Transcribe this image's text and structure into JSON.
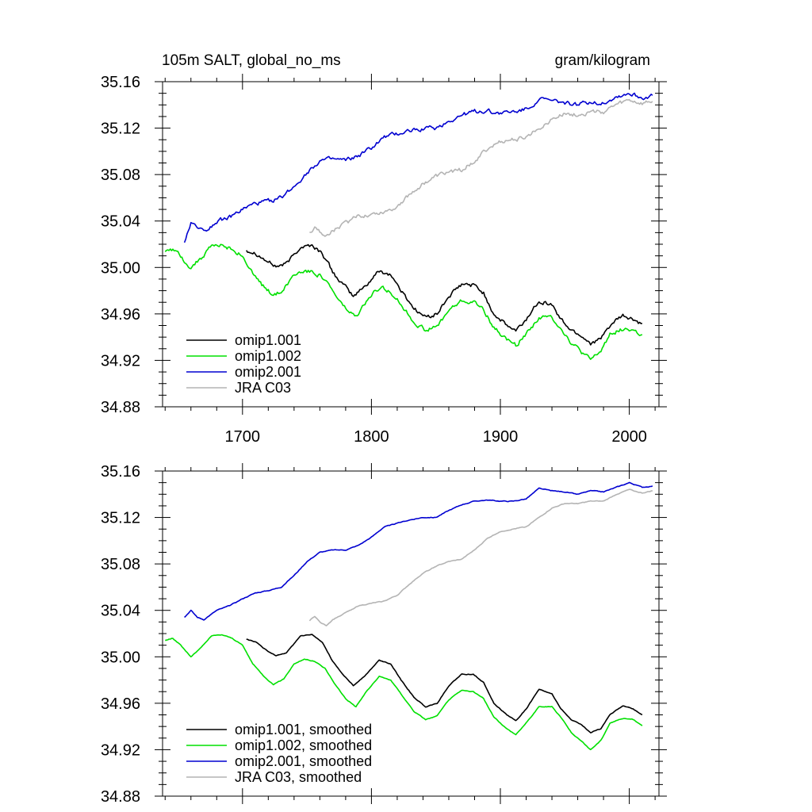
{
  "colors": {
    "omip1_001": "#000000",
    "omip1_002": "#00e000",
    "omip2_001": "#0000d0",
    "jra_c03": "#b4b4b4"
  },
  "chart_data": [
    {
      "type": "line",
      "title": "105m SALT, global_no_ms",
      "units": "gram/kilogram",
      "xlim": [
        1638,
        2023
      ],
      "ylim": [
        34.88,
        35.16
      ],
      "xticks": [
        "1700",
        "1800",
        "1900",
        "2000"
      ],
      "yticks": [
        "35.16",
        "35.12",
        "35.08",
        "35.04",
        "35.00",
        "34.96",
        "34.92",
        "34.88"
      ],
      "legend": "bottom-left",
      "series": [
        {
          "name": "omip1.001",
          "key": "omip1_001",
          "x": [
            1703,
            1710,
            1718,
            1726,
            1734,
            1745,
            1754,
            1762,
            1770,
            1778,
            1786,
            1796,
            1806,
            1815,
            1823,
            1833,
            1842,
            1851,
            1860,
            1870,
            1879,
            1887,
            1895,
            1905,
            1912,
            1920,
            1930,
            1940,
            1947,
            1955,
            1962,
            1970,
            1978,
            1985,
            1995,
            2003,
            2010
          ],
          "values": [
            35.015,
            35.013,
            35.006,
            35.001,
            35.003,
            35.018,
            35.019,
            35.012,
            34.996,
            34.985,
            34.975,
            34.985,
            34.997,
            34.994,
            34.98,
            34.965,
            34.957,
            34.96,
            34.975,
            34.985,
            34.985,
            34.978,
            34.96,
            34.95,
            34.945,
            34.955,
            34.972,
            34.968,
            34.955,
            34.946,
            34.942,
            34.935,
            34.938,
            34.95,
            34.958,
            34.955,
            34.95
          ],
          "noise": 0.0035
        },
        {
          "name": "omip1.002",
          "key": "omip1_002",
          "x": [
            1640,
            1646,
            1652,
            1660,
            1668,
            1676,
            1684,
            1692,
            1700,
            1708,
            1716,
            1724,
            1732,
            1740,
            1748,
            1756,
            1764,
            1772,
            1780,
            1788,
            1796,
            1806,
            1815,
            1823,
            1833,
            1842,
            1851,
            1860,
            1870,
            1879,
            1887,
            1895,
            1905,
            1912,
            1920,
            1930,
            1940,
            1947,
            1955,
            1962,
            1970,
            1978,
            1985,
            1995,
            2003,
            2010
          ],
          "values": [
            35.014,
            35.016,
            35.01,
            35.0,
            35.008,
            35.018,
            35.019,
            35.016,
            35.01,
            34.994,
            34.984,
            34.976,
            34.981,
            34.994,
            34.998,
            34.996,
            34.99,
            34.976,
            34.964,
            34.957,
            34.97,
            34.983,
            34.98,
            34.968,
            34.953,
            34.946,
            34.949,
            34.963,
            34.971,
            34.97,
            34.964,
            34.948,
            34.938,
            34.933,
            34.943,
            34.957,
            34.957,
            34.948,
            34.935,
            34.928,
            34.92,
            34.928,
            34.943,
            34.947,
            34.946,
            34.941
          ],
          "noise": 0.0035
        },
        {
          "name": "omip2.001",
          "key": "omip2_001",
          "x": [
            1655,
            1660,
            1665,
            1670,
            1680,
            1690,
            1700,
            1710,
            1720,
            1730,
            1740,
            1750,
            1760,
            1770,
            1780,
            1790,
            1800,
            1810,
            1820,
            1830,
            1840,
            1850,
            1860,
            1870,
            1880,
            1890,
            1900,
            1910,
            1920,
            1930,
            1940,
            1950,
            1960,
            1970,
            1980,
            1990,
            2000,
            2010,
            2018
          ],
          "values": [
            35.022,
            35.038,
            35.036,
            35.031,
            35.04,
            35.043,
            35.05,
            35.055,
            35.057,
            35.06,
            35.07,
            35.082,
            35.092,
            35.093,
            35.092,
            35.096,
            35.103,
            35.112,
            35.115,
            35.118,
            35.12,
            35.12,
            35.126,
            35.131,
            35.134,
            35.135,
            35.133,
            35.134,
            35.136,
            35.145,
            35.143,
            35.142,
            35.14,
            35.143,
            35.142,
            35.147,
            35.15,
            35.146,
            35.148
          ],
          "noise": 0.0035
        },
        {
          "name": "JRA C03",
          "key": "jra_c03",
          "x": [
            1752,
            1756,
            1760,
            1765,
            1770,
            1780,
            1790,
            1800,
            1810,
            1820,
            1830,
            1840,
            1850,
            1860,
            1870,
            1880,
            1890,
            1900,
            1910,
            1920,
            1930,
            1940,
            1950,
            1960,
            1970,
            1980,
            1990,
            2000,
            2010,
            2018
          ],
          "values": [
            35.031,
            35.035,
            35.03,
            35.027,
            35.032,
            35.038,
            35.044,
            35.046,
            35.048,
            35.053,
            35.063,
            35.072,
            35.078,
            35.082,
            35.084,
            35.092,
            35.102,
            35.108,
            35.11,
            35.112,
            35.12,
            35.128,
            35.132,
            35.132,
            35.134,
            35.134,
            35.14,
            35.144,
            35.141,
            35.143
          ],
          "noise": 0.0035
        }
      ]
    },
    {
      "type": "line",
      "title": "",
      "xlim": [
        1638,
        2023
      ],
      "ylim": [
        34.88,
        35.16
      ],
      "yticks": [
        "35.16",
        "35.12",
        "35.08",
        "35.04",
        "35.00",
        "34.96",
        "34.92",
        "34.88"
      ],
      "legend": "bottom-left",
      "series": [
        {
          "name": "omip1.001, smoothed",
          "key": "omip1_001",
          "x": [
            1703,
            1710,
            1718,
            1726,
            1734,
            1745,
            1754,
            1762,
            1770,
            1778,
            1786,
            1796,
            1806,
            1815,
            1823,
            1833,
            1842,
            1851,
            1860,
            1870,
            1879,
            1887,
            1895,
            1905,
            1912,
            1920,
            1930,
            1940,
            1947,
            1955,
            1962,
            1970,
            1978,
            1985,
            1995,
            2003,
            2010
          ],
          "values": [
            35.015,
            35.013,
            35.006,
            35.001,
            35.003,
            35.018,
            35.019,
            35.012,
            34.996,
            34.985,
            34.975,
            34.985,
            34.997,
            34.994,
            34.98,
            34.965,
            34.957,
            34.96,
            34.975,
            34.985,
            34.985,
            34.978,
            34.96,
            34.95,
            34.945,
            34.955,
            34.972,
            34.968,
            34.955,
            34.946,
            34.942,
            34.935,
            34.938,
            34.95,
            34.958,
            34.955,
            34.95
          ],
          "noise": 0.0006
        },
        {
          "name": "omip1.002, smoothed",
          "key": "omip1_002",
          "x": [
            1640,
            1646,
            1652,
            1660,
            1668,
            1676,
            1684,
            1692,
            1700,
            1708,
            1716,
            1724,
            1732,
            1740,
            1748,
            1756,
            1764,
            1772,
            1780,
            1788,
            1796,
            1806,
            1815,
            1823,
            1833,
            1842,
            1851,
            1860,
            1870,
            1879,
            1887,
            1895,
            1905,
            1912,
            1920,
            1930,
            1940,
            1947,
            1955,
            1962,
            1970,
            1978,
            1985,
            1995,
            2003,
            2010
          ],
          "values": [
            35.014,
            35.016,
            35.01,
            35.0,
            35.008,
            35.018,
            35.019,
            35.016,
            35.01,
            34.994,
            34.984,
            34.976,
            34.981,
            34.994,
            34.998,
            34.996,
            34.99,
            34.976,
            34.964,
            34.957,
            34.97,
            34.983,
            34.98,
            34.968,
            34.953,
            34.946,
            34.949,
            34.963,
            34.971,
            34.97,
            34.964,
            34.948,
            34.938,
            34.933,
            34.943,
            34.957,
            34.957,
            34.948,
            34.935,
            34.928,
            34.92,
            34.928,
            34.943,
            34.947,
            34.946,
            34.941
          ],
          "noise": 0.0006
        },
        {
          "name": "omip2.001, smoothed",
          "key": "omip2_001",
          "x": [
            1655,
            1660,
            1665,
            1670,
            1680,
            1690,
            1700,
            1710,
            1720,
            1730,
            1740,
            1750,
            1760,
            1770,
            1780,
            1790,
            1800,
            1810,
            1820,
            1830,
            1840,
            1850,
            1860,
            1870,
            1880,
            1890,
            1900,
            1910,
            1920,
            1930,
            1940,
            1950,
            1960,
            1970,
            1980,
            1990,
            2000,
            2010,
            2018
          ],
          "values": [
            35.034,
            35.04,
            35.034,
            35.032,
            35.04,
            35.044,
            35.05,
            35.055,
            35.057,
            35.06,
            35.07,
            35.082,
            35.09,
            35.092,
            35.092,
            35.096,
            35.103,
            35.112,
            35.115,
            35.118,
            35.12,
            35.12,
            35.126,
            35.131,
            35.134,
            35.135,
            35.134,
            35.134,
            35.136,
            35.145,
            35.143,
            35.142,
            35.14,
            35.143,
            35.142,
            35.146,
            35.15,
            35.146,
            35.147
          ],
          "noise": 0.0006
        },
        {
          "name": "JRA C03, smoothed",
          "key": "jra_c03",
          "x": [
            1752,
            1756,
            1760,
            1765,
            1770,
            1780,
            1790,
            1800,
            1810,
            1820,
            1830,
            1840,
            1850,
            1860,
            1870,
            1880,
            1890,
            1900,
            1910,
            1920,
            1930,
            1940,
            1950,
            1960,
            1970,
            1980,
            1990,
            2000,
            2010,
            2018
          ],
          "values": [
            35.031,
            35.035,
            35.03,
            35.027,
            35.032,
            35.038,
            35.044,
            35.046,
            35.048,
            35.053,
            35.063,
            35.072,
            35.078,
            35.082,
            35.084,
            35.092,
            35.102,
            35.108,
            35.11,
            35.112,
            35.12,
            35.128,
            35.132,
            35.132,
            35.134,
            35.134,
            35.14,
            35.144,
            35.141,
            35.143
          ],
          "noise": 0.0006
        }
      ]
    }
  ]
}
